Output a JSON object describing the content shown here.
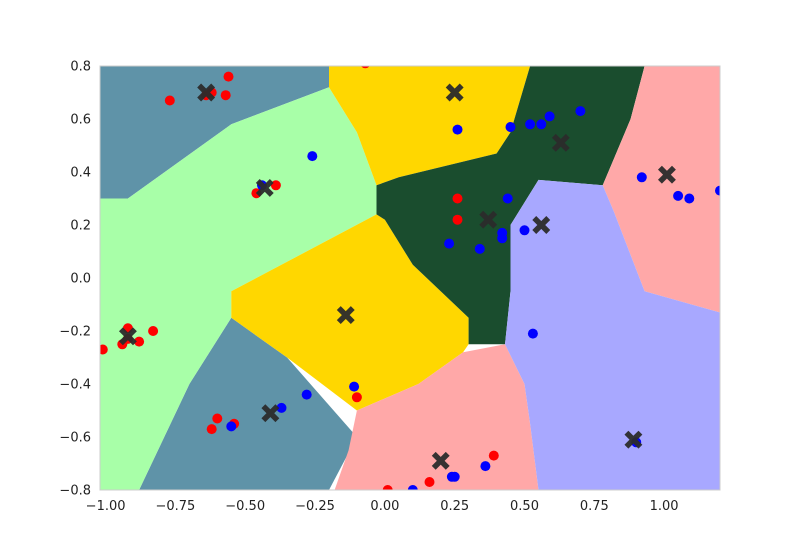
{
  "chart_data": {
    "type": "scatter",
    "title": "",
    "xlabel": "",
    "ylabel": "",
    "xlim": [
      -1.02,
      1.2
    ],
    "ylim": [
      -0.8,
      0.8
    ],
    "xticks": [
      -1.0,
      -0.75,
      -0.5,
      -0.25,
      0.0,
      0.25,
      0.5,
      0.75,
      1.0
    ],
    "xtick_labels": [
      "−1.00",
      "−0.75",
      "−0.50",
      "−0.25",
      "0.00",
      "0.25",
      "0.50",
      "0.75",
      "1.00"
    ],
    "yticks": [
      -0.8,
      -0.6,
      -0.4,
      -0.2,
      0.0,
      0.2,
      0.4,
      0.6,
      0.8
    ],
    "ytick_labels": [
      "−0.8",
      "−0.6",
      "−0.4",
      "−0.2",
      "0.0",
      "0.2",
      "0.4",
      "0.6",
      "0.8"
    ],
    "grid": false,
    "legend": "none",
    "regions": {
      "description": "decision regions (nearest-centroid style); polygons in data units",
      "colors": {
        "steel": "#5f93a8",
        "lightgreen": "#a8ffa8",
        "gold": "#ffd700",
        "darkgreen": "#1a4d2e",
        "pink": "#ffa8a8",
        "lavender": "#a8a8ff"
      },
      "polygons": [
        {
          "color": "steel",
          "points": [
            [
              -1.02,
              0.8
            ],
            [
              -0.2,
              0.8
            ],
            [
              -0.2,
              0.72
            ],
            [
              -0.55,
              0.58
            ],
            [
              -0.92,
              0.3
            ],
            [
              -1.02,
              0.3
            ]
          ]
        },
        {
          "color": "steel",
          "points": [
            [
              -0.55,
              -0.15
            ],
            [
              -0.35,
              -0.3
            ],
            [
              -0.1,
              -0.6
            ],
            [
              -0.2,
              -0.8
            ],
            [
              -0.88,
              -0.8
            ],
            [
              -0.7,
              -0.4
            ]
          ]
        },
        {
          "color": "lightgreen",
          "points": [
            [
              -1.02,
              0.3
            ],
            [
              -0.92,
              0.3
            ],
            [
              -0.55,
              0.58
            ],
            [
              -0.2,
              0.72
            ],
            [
              -0.1,
              0.55
            ],
            [
              -0.03,
              0.35
            ],
            [
              -0.03,
              0.24
            ],
            [
              -0.55,
              -0.05
            ],
            [
              -0.55,
              -0.15
            ],
            [
              -0.7,
              -0.4
            ],
            [
              -0.88,
              -0.8
            ],
            [
              -1.02,
              -0.8
            ]
          ]
        },
        {
          "color": "gold",
          "points": [
            [
              -0.2,
              0.8
            ],
            [
              0.52,
              0.8
            ],
            [
              0.45,
              0.55
            ],
            [
              0.4,
              0.47
            ],
            [
              0.05,
              0.38
            ],
            [
              -0.03,
              0.35
            ],
            [
              -0.1,
              0.55
            ],
            [
              -0.2,
              0.72
            ]
          ]
        },
        {
          "color": "gold",
          "points": [
            [
              -0.03,
              0.24
            ],
            [
              0.0,
              0.22
            ],
            [
              0.1,
              0.05
            ],
            [
              0.3,
              -0.15
            ],
            [
              0.3,
              -0.25
            ],
            [
              0.28,
              -0.28
            ],
            [
              0.12,
              -0.4
            ],
            [
              -0.1,
              -0.5
            ],
            [
              -0.35,
              -0.3
            ],
            [
              -0.55,
              -0.15
            ],
            [
              -0.55,
              -0.05
            ]
          ]
        },
        {
          "color": "darkgreen",
          "points": [
            [
              0.52,
              0.8
            ],
            [
              0.93,
              0.8
            ],
            [
              0.88,
              0.6
            ],
            [
              0.82,
              0.45
            ],
            [
              0.78,
              0.35
            ],
            [
              0.55,
              0.37
            ],
            [
              0.45,
              0.2
            ],
            [
              0.45,
              -0.05
            ],
            [
              0.43,
              -0.25
            ],
            [
              0.3,
              -0.25
            ],
            [
              0.3,
              -0.15
            ],
            [
              0.1,
              0.05
            ],
            [
              0.0,
              0.22
            ],
            [
              -0.03,
              0.24
            ],
            [
              -0.03,
              0.35
            ],
            [
              0.05,
              0.38
            ],
            [
              0.4,
              0.47
            ],
            [
              0.45,
              0.55
            ]
          ]
        },
        {
          "color": "pink",
          "points": [
            [
              0.93,
              0.8
            ],
            [
              1.2,
              0.8
            ],
            [
              1.2,
              -0.13
            ],
            [
              0.93,
              -0.05
            ],
            [
              0.82,
              0.25
            ],
            [
              0.78,
              0.35
            ],
            [
              0.82,
              0.45
            ],
            [
              0.88,
              0.6
            ]
          ]
        },
        {
          "color": "pink",
          "points": [
            [
              0.28,
              -0.28
            ],
            [
              0.43,
              -0.25
            ],
            [
              0.5,
              -0.4
            ],
            [
              0.52,
              -0.55
            ],
            [
              0.55,
              -0.8
            ],
            [
              -0.18,
              -0.8
            ],
            [
              -0.13,
              -0.65
            ],
            [
              -0.1,
              -0.5
            ],
            [
              0.12,
              -0.4
            ]
          ]
        },
        {
          "color": "lavender",
          "points": [
            [
              0.55,
              0.37
            ],
            [
              0.78,
              0.35
            ],
            [
              0.82,
              0.25
            ],
            [
              0.93,
              -0.05
            ],
            [
              1.2,
              -0.13
            ],
            [
              1.2,
              -0.8
            ],
            [
              0.55,
              -0.8
            ],
            [
              0.52,
              -0.55
            ],
            [
              0.5,
              -0.4
            ],
            [
              0.43,
              -0.25
            ],
            [
              0.45,
              -0.05
            ],
            [
              0.45,
              0.2
            ]
          ]
        }
      ]
    },
    "series": [
      {
        "color": "#ff0000",
        "points": [
          [
            -0.07,
            0.81
          ],
          [
            -0.56,
            0.76
          ],
          [
            -0.62,
            0.7
          ],
          [
            -0.57,
            0.69
          ],
          [
            -0.64,
            0.69
          ],
          [
            -0.77,
            0.67
          ],
          [
            -0.39,
            0.35
          ],
          [
            -0.46,
            0.32
          ],
          [
            -0.92,
            -0.19
          ],
          [
            -0.92,
            -0.23
          ],
          [
            -0.88,
            -0.24
          ],
          [
            -0.94,
            -0.25
          ],
          [
            -0.83,
            -0.2
          ],
          [
            -1.01,
            -0.27
          ],
          [
            0.26,
            0.3
          ],
          [
            0.26,
            0.22
          ],
          [
            -0.1,
            -0.45
          ],
          [
            -0.6,
            -0.53
          ],
          [
            -0.54,
            -0.55
          ],
          [
            -0.62,
            -0.57
          ],
          [
            0.39,
            -0.67
          ],
          [
            0.16,
            -0.77
          ],
          [
            0.01,
            -0.8
          ]
        ]
      },
      {
        "color": "#0000ff",
        "points": [
          [
            -0.26,
            0.46
          ],
          [
            -0.44,
            0.35
          ],
          [
            0.26,
            0.56
          ],
          [
            0.45,
            0.57
          ],
          [
            0.52,
            0.58
          ],
          [
            0.56,
            0.58
          ],
          [
            0.59,
            0.61
          ],
          [
            0.7,
            0.63
          ],
          [
            0.44,
            0.3
          ],
          [
            0.42,
            0.17
          ],
          [
            0.42,
            0.15
          ],
          [
            0.5,
            0.18
          ],
          [
            0.23,
            0.13
          ],
          [
            0.34,
            0.11
          ],
          [
            0.92,
            0.38
          ],
          [
            1.05,
            0.31
          ],
          [
            1.09,
            0.3
          ],
          [
            1.2,
            0.33
          ],
          [
            0.53,
            -0.21
          ],
          [
            -0.11,
            -0.41
          ],
          [
            -0.28,
            -0.44
          ],
          [
            -0.37,
            -0.49
          ],
          [
            -0.55,
            -0.56
          ],
          [
            0.24,
            -0.75
          ],
          [
            0.25,
            -0.75
          ],
          [
            0.36,
            -0.71
          ],
          [
            0.1,
            -0.8
          ],
          [
            0.9,
            -0.62
          ]
        ]
      }
    ],
    "centroids": {
      "color": "#2b2b2b",
      "marker": "X",
      "points": [
        [
          -0.64,
          0.7
        ],
        [
          0.25,
          0.7
        ],
        [
          0.63,
          0.51
        ],
        [
          1.01,
          0.39
        ],
        [
          -0.43,
          0.34
        ],
        [
          0.37,
          0.22
        ],
        [
          0.56,
          0.2
        ],
        [
          -0.92,
          -0.22
        ],
        [
          -0.14,
          -0.14
        ],
        [
          -0.41,
          -0.51
        ],
        [
          0.2,
          -0.69
        ],
        [
          0.89,
          -0.61
        ]
      ]
    }
  }
}
